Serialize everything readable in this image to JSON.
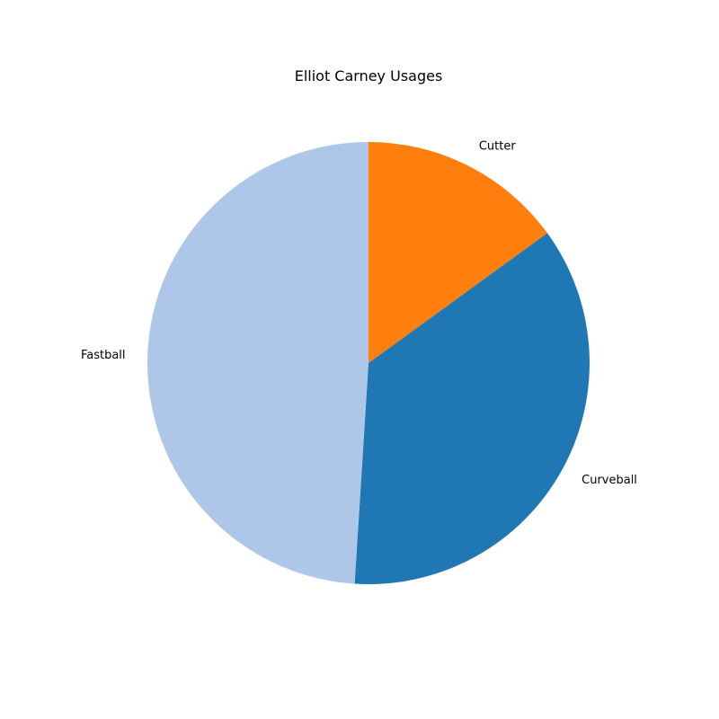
{
  "chart_data": {
    "type": "pie",
    "title": "Elliot Carney Usages",
    "slices": [
      {
        "label": "Cutter",
        "value": 15,
        "color": "#ff7f0e"
      },
      {
        "label": "Curveball",
        "value": 36,
        "color": "#1f77b4"
      },
      {
        "label": "Fastball",
        "value": 49,
        "color": "#aec7e8"
      }
    ],
    "start_angle_deg": 90,
    "direction": "clockwise",
    "legend": "none"
  }
}
